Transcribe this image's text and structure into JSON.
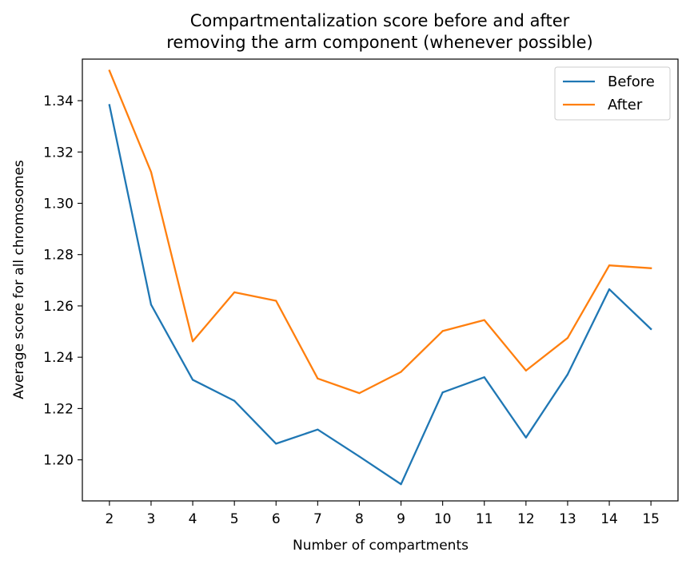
{
  "chart_data": {
    "type": "line",
    "title": [
      "Compartmentalization score before and after",
      "removing the arm component (whenever possible)"
    ],
    "xlabel": "Number of compartments",
    "ylabel": "Average score for all chromosomes",
    "x": [
      2,
      3,
      4,
      5,
      6,
      7,
      8,
      9,
      10,
      11,
      12,
      13,
      14,
      15
    ],
    "xlim": [
      1.35,
      15.65
    ],
    "ylim": [
      1.184,
      1.3562
    ],
    "yticks": [
      1.2,
      1.22,
      1.24,
      1.26,
      1.28,
      1.3,
      1.32,
      1.34
    ],
    "yticklabels": [
      "1.20",
      "1.22",
      "1.24",
      "1.26",
      "1.28",
      "1.30",
      "1.32",
      "1.34"
    ],
    "xticklabels": [
      "2",
      "3",
      "4",
      "5",
      "6",
      "7",
      "8",
      "9",
      "10",
      "11",
      "12",
      "13",
      "14",
      "15"
    ],
    "grid": false,
    "legend_position": "top-right",
    "series": [
      {
        "name": "Before",
        "color": "#1f77b4",
        "values": [
          1.3383,
          1.2605,
          1.2312,
          1.223,
          1.2063,
          1.2118,
          1.2013,
          1.1905,
          1.2263,
          1.2322,
          1.2087,
          1.2333,
          1.2665,
          1.251
        ]
      },
      {
        "name": "After",
        "color": "#ff7f0e",
        "values": [
          1.3517,
          1.3122,
          1.2462,
          1.2653,
          1.262,
          1.2317,
          1.226,
          1.2343,
          1.2502,
          1.2545,
          1.2348,
          1.2475,
          1.2758,
          1.2747
        ]
      }
    ]
  }
}
